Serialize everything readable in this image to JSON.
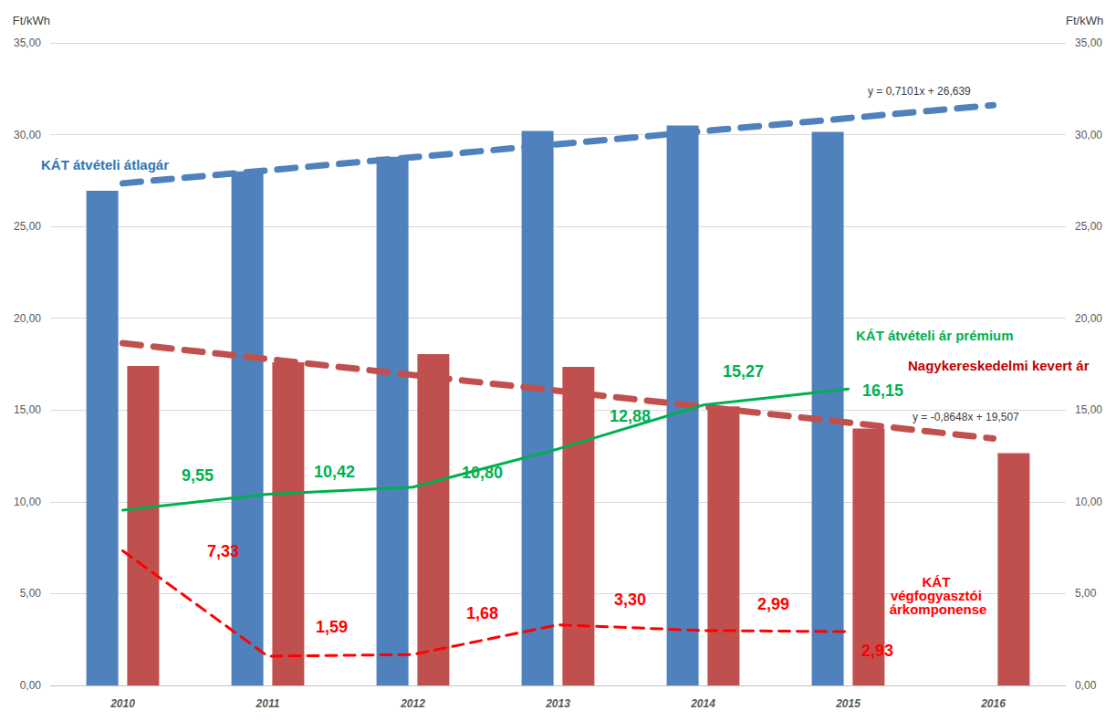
{
  "chart_data": {
    "type": "bar",
    "categories": [
      "2010",
      "2011",
      "2012",
      "2013",
      "2014",
      "2015",
      "2016"
    ],
    "ylabel": "Ft/kWh",
    "y2label": "Ft/kWh",
    "ylim": [
      0,
      35
    ],
    "yticks": [
      {
        "value": 0,
        "label": "0,00"
      },
      {
        "value": 5,
        "label": "5,00"
      },
      {
        "value": 10,
        "label": "10,00"
      },
      {
        "value": 15,
        "label": "15,00"
      },
      {
        "value": 20,
        "label": "20,00"
      },
      {
        "value": 25,
        "label": "25,00"
      },
      {
        "value": 30,
        "label": "30,00"
      },
      {
        "value": 35,
        "label": "35,00"
      }
    ],
    "y2lim": [
      0,
      35
    ],
    "y2ticks": [
      {
        "value": 0,
        "label": "0,00"
      },
      {
        "value": 5,
        "label": "5,00"
      },
      {
        "value": 10,
        "label": "10,00"
      },
      {
        "value": 15,
        "label": "15,00"
      },
      {
        "value": 20,
        "label": "20,00"
      },
      {
        "value": 25,
        "label": "25,00"
      },
      {
        "value": 30,
        "label": "30,00"
      },
      {
        "value": 35,
        "label": "35,00"
      }
    ],
    "grid": true,
    "series": [
      {
        "name": "KÁT átvételi átlagár",
        "type": "bar",
        "color": "#4f81bd",
        "values": [
          26.95,
          28.0,
          28.8,
          30.2,
          30.5,
          30.15,
          null
        ]
      },
      {
        "name": "Nagykereskedelmi kevert ár",
        "type": "bar",
        "color": "#c0504d",
        "values": [
          17.4,
          17.6,
          18.05,
          17.35,
          15.2,
          14.0,
          12.65
        ]
      },
      {
        "name": "y = 0,7101x + 26,639",
        "type": "line",
        "color": "#4f81bd",
        "line_style": "dashed",
        "values": [
          27.35,
          28.06,
          28.77,
          29.48,
          30.19,
          30.9,
          31.61
        ]
      },
      {
        "name": "y = -0,8648x + 19,507",
        "type": "line",
        "color": "#c0504d",
        "line_style": "dashed",
        "values": [
          18.64,
          17.78,
          16.91,
          16.05,
          15.18,
          14.32,
          13.45
        ]
      },
      {
        "name": "KÁT átvételi ár prémium",
        "type": "line",
        "color": "#00b050",
        "line_style": "solid",
        "data_labels": true,
        "values": [
          9.55,
          10.42,
          10.8,
          12.88,
          15.27,
          16.15,
          null
        ],
        "value_labels": [
          "9,55",
          "10,42",
          "10,80",
          "12,88",
          "15,27",
          "16,15",
          null
        ]
      },
      {
        "name": "KÁT végfogyasztói árkomponense",
        "type": "line",
        "color": "#ff0000",
        "line_style": "dashed",
        "data_labels": true,
        "values": [
          7.33,
          1.59,
          1.68,
          3.3,
          2.99,
          2.93,
          null
        ],
        "value_labels": [
          "7,33",
          "1,59",
          "1,68",
          "3,30",
          "2,99",
          "2,93",
          null
        ]
      }
    ]
  }
}
